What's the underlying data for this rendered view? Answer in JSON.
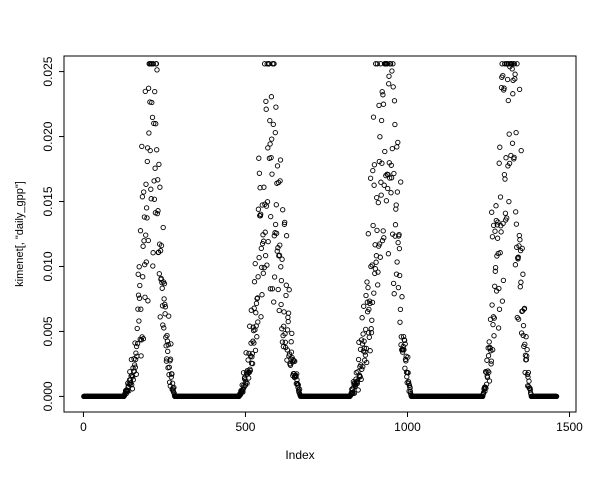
{
  "figure": {
    "background": "#ffffff",
    "point_color": "#000000",
    "axis_color": "#000000"
  },
  "chart_data": {
    "type": "scatter",
    "title": "",
    "xlabel": "Index",
    "ylabel": "kimenet[, \"daily_gpp\"]",
    "xlim": [
      -60,
      1520
    ],
    "ylim": [
      -0.0012,
      0.0262
    ],
    "x_ticks": [
      0,
      500,
      1000,
      1500
    ],
    "y_ticks": [
      0.0,
      0.005,
      0.01,
      0.015,
      0.02,
      0.025
    ],
    "x_range_data": [
      1,
      1460
    ],
    "marker": "open-circle",
    "marker_radius": 2.2,
    "noise_sigma": 0.38,
    "seed": 20,
    "y_cap": 0.0256,
    "envelope_keypoints": [
      [
        1,
        0
      ],
      [
        125,
        0
      ],
      [
        140,
        0.0008
      ],
      [
        155,
        0.002
      ],
      [
        168,
        0.0045
      ],
      [
        180,
        0.008
      ],
      [
        190,
        0.013
      ],
      [
        198,
        0.018
      ],
      [
        205,
        0.0235
      ],
      [
        212,
        0.0245
      ],
      [
        220,
        0.019
      ],
      [
        228,
        0.015
      ],
      [
        236,
        0.011
      ],
      [
        244,
        0.008
      ],
      [
        252,
        0.0055
      ],
      [
        262,
        0.003
      ],
      [
        272,
        0.0012
      ],
      [
        282,
        0
      ],
      [
        480,
        0
      ],
      [
        495,
        0.0008
      ],
      [
        508,
        0.002
      ],
      [
        520,
        0.004
      ],
      [
        535,
        0.008
      ],
      [
        550,
        0.013
      ],
      [
        562,
        0.017
      ],
      [
        572,
        0.019
      ],
      [
        582,
        0.016
      ],
      [
        592,
        0.013
      ],
      [
        605,
        0.01
      ],
      [
        618,
        0.007
      ],
      [
        632,
        0.0045
      ],
      [
        645,
        0.0025
      ],
      [
        658,
        0.001
      ],
      [
        670,
        0
      ],
      [
        822,
        0
      ],
      [
        838,
        0.0008
      ],
      [
        852,
        0.002
      ],
      [
        866,
        0.004
      ],
      [
        880,
        0.007
      ],
      [
        895,
        0.011
      ],
      [
        910,
        0.016
      ],
      [
        925,
        0.021
      ],
      [
        938,
        0.0245
      ],
      [
        950,
        0.02
      ],
      [
        962,
        0.015
      ],
      [
        975,
        0.009
      ],
      [
        988,
        0.004
      ],
      [
        1000,
        0.0015
      ],
      [
        1012,
        0
      ],
      [
        1232,
        0
      ],
      [
        1245,
        0.0015
      ],
      [
        1256,
        0.004
      ],
      [
        1268,
        0.008
      ],
      [
        1280,
        0.013
      ],
      [
        1292,
        0.018
      ],
      [
        1305,
        0.022
      ],
      [
        1318,
        0.0235
      ],
      [
        1330,
        0.018
      ],
      [
        1342,
        0.012
      ],
      [
        1352,
        0.008
      ],
      [
        1362,
        0.004
      ],
      [
        1372,
        0.0015
      ],
      [
        1382,
        0
      ],
      [
        1460,
        0
      ]
    ]
  }
}
